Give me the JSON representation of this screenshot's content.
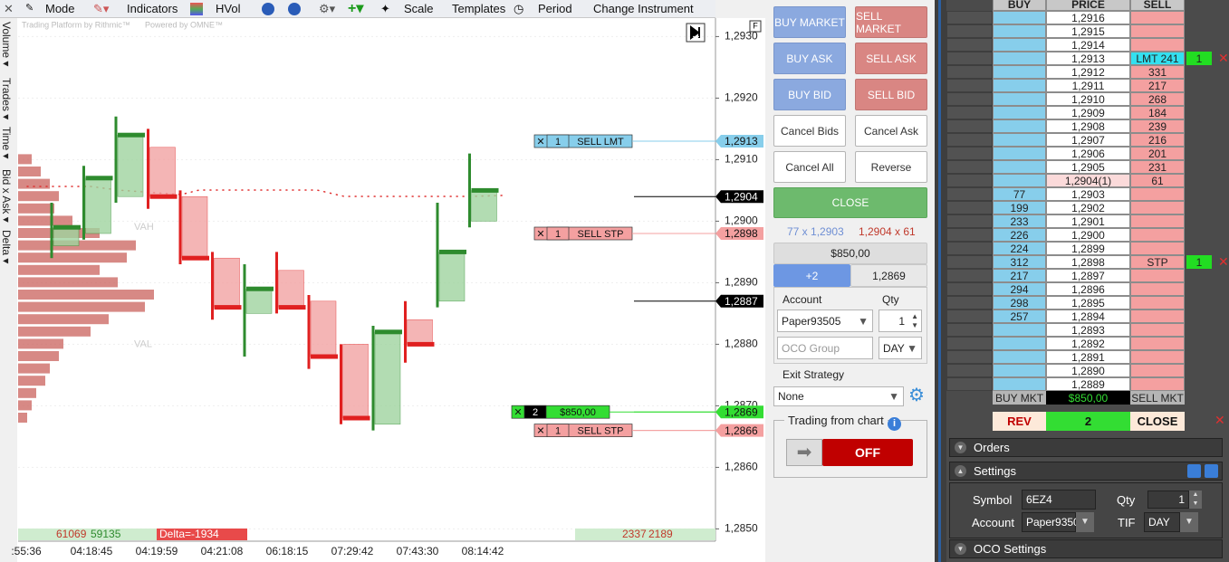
{
  "toolbar": {
    "mode": "Mode",
    "indicators": "Indicators",
    "hvol": "HVol",
    "scale": "Scale",
    "templates": "Templates",
    "period": "Period",
    "change_instrument": "Change Instrument"
  },
  "side_tabs": [
    "Volume ▾",
    "Trades ▾",
    "Time ▾",
    "Bid x Ask ▾",
    "Delta ▾"
  ],
  "chart": {
    "watermark": [
      "Trading Platform by Rithmic™",
      "Powered by OMNE™"
    ],
    "vah": "VAH",
    "val": "VAL",
    "ylim": [
      1.2848,
      1.2933
    ],
    "yticks": [
      {
        "value": 1.293,
        "label": "1,2930"
      },
      {
        "value": 1.292,
        "label": "1,2920"
      },
      {
        "value": 1.291,
        "label": "1,2910"
      },
      {
        "value": 1.29,
        "label": "1,2900"
      },
      {
        "value": 1.289,
        "label": "1,2890"
      },
      {
        "value": 1.288,
        "label": "1,2880"
      },
      {
        "value": 1.287,
        "label": "1,2870"
      },
      {
        "value": 1.286,
        "label": "1,2860"
      },
      {
        "value": 1.285,
        "label": "1,2850"
      }
    ],
    "grid": true,
    "price_tags": [
      {
        "value": 1.2913,
        "label": "1,2913",
        "color": "#87ceeb"
      },
      {
        "value": 1.2904,
        "label": "1,2904",
        "color": "#000000"
      },
      {
        "value": 1.2898,
        "label": "1,2898",
        "color": "#f4a0a0"
      },
      {
        "value": 1.2887,
        "label": "1,2887",
        "color": "#000000"
      },
      {
        "value": 1.2869,
        "label": "1,2869",
        "color": "#33dd33"
      },
      {
        "value": 1.2866,
        "label": "1,2866",
        "color": "#f4a0a0"
      }
    ],
    "order_tags": [
      {
        "qty": 1,
        "label": "SELL LMT",
        "price": 1.2913,
        "color": "#87ceeb"
      },
      {
        "qty": 1,
        "label": "SELL STP",
        "price": 1.2898,
        "color": "#f4a0a0"
      },
      {
        "qty": 2,
        "label": "$850,00",
        "price": 1.2869,
        "color": "#33dd33"
      },
      {
        "qty": 1,
        "label": "SELL STP",
        "price": 1.2866,
        "color": "#f4a0a0"
      }
    ],
    "x_labels": [
      ":55:36",
      "04:18:45",
      "04:19:59",
      "04:21:08",
      "06:18:15",
      "07:29:42",
      "07:43:30",
      "08:14:42"
    ],
    "candles": [
      {
        "open": 1.2896,
        "high": 1.2903,
        "low": 1.2894,
        "close": 1.2899
      },
      {
        "open": 1.2898,
        "high": 1.2909,
        "low": 1.2897,
        "close": 1.2907
      },
      {
        "open": 1.2904,
        "high": 1.2917,
        "low": 1.2903,
        "close": 1.2914
      },
      {
        "open": 1.2912,
        "high": 1.2915,
        "low": 1.2902,
        "close": 1.2904
      },
      {
        "open": 1.2904,
        "high": 1.2905,
        "low": 1.2893,
        "close": 1.2894
      },
      {
        "open": 1.2894,
        "high": 1.2895,
        "low": 1.2884,
        "close": 1.2886
      },
      {
        "open": 1.2885,
        "high": 1.2893,
        "low": 1.2878,
        "close": 1.2889
      },
      {
        "open": 1.2892,
        "high": 1.2895,
        "low": 1.2885,
        "close": 1.2886
      },
      {
        "open": 1.2887,
        "high": 1.2888,
        "low": 1.2876,
        "close": 1.2878
      },
      {
        "open": 1.288,
        "high": 1.288,
        "low": 1.2867,
        "close": 1.2868
      },
      {
        "open": 1.2867,
        "high": 1.2883,
        "low": 1.2866,
        "close": 1.2882
      },
      {
        "open": 1.2884,
        "high": 1.2887,
        "low": 1.2877,
        "close": 1.288
      },
      {
        "open": 1.2887,
        "high": 1.2903,
        "low": 1.2886,
        "close": 1.2895
      },
      {
        "open": 1.29,
        "high": 1.2911,
        "low": 1.2899,
        "close": 1.2905
      }
    ],
    "profile_prices": [
      1.291,
      1.2908,
      1.2906,
      1.2904,
      1.2902,
      1.29,
      1.2898,
      1.2896,
      1.2894,
      1.2892,
      1.289,
      1.2888,
      1.2886,
      1.2884,
      1.2882,
      1.288,
      1.2878,
      1.2876,
      1.2874,
      1.2872,
      1.287,
      1.2868
    ],
    "profile_volumes": [
      150,
      250,
      350,
      450,
      400,
      600,
      900,
      1300,
      1200,
      900,
      1100,
      1500,
      1400,
      1000,
      800,
      500,
      450,
      350,
      300,
      200,
      150,
      100
    ],
    "stats": {
      "bid_volume": 61069,
      "ask_volume": 59135,
      "delta": "Delta=-1934",
      "right_bid": 2337,
      "right_ask": 2189
    }
  },
  "order_panel": {
    "buy_market": "BUY MARKET",
    "sell_market": "SELL MARKET",
    "buy_ask": "BUY ASK",
    "sell_ask": "SELL ASK",
    "buy_bid": "BUY BID",
    "sell_bid": "SELL BID",
    "cancel_bids": "Cancel Bids",
    "cancel_ask": "Cancel Ask",
    "cancel_all": "Cancel All",
    "reverse": "Reverse",
    "close": "CLOSE",
    "bid_quote": "77 x 1,2903",
    "ask_quote": "1,2904 x 61",
    "pnl": "$850,00",
    "position": "+2",
    "avg_price": "1,2869",
    "account_label": "Account",
    "qty_label": "Qty",
    "account": "Paper93505",
    "qty": 1,
    "oco_group": "OCO Group",
    "tif": "DAY",
    "exit_strategy_label": "Exit Strategy",
    "exit_strategy": "None",
    "trading_from_chart": "Trading from chart",
    "toggle": "OFF"
  },
  "dom": {
    "headers": [
      "BUY",
      "PRICE",
      "SELL"
    ],
    "rows": [
      {
        "price": "1,2916"
      },
      {
        "price": "1,2915"
      },
      {
        "price": "1,2914"
      },
      {
        "price": "1,2913",
        "sell": "LMT 241",
        "order": 1
      },
      {
        "price": "1,2912",
        "sell": 331
      },
      {
        "price": "1,2911",
        "sell": 217
      },
      {
        "price": "1,2910",
        "sell": 268
      },
      {
        "price": "1,2909",
        "sell": 184
      },
      {
        "price": "1,2908",
        "sell": 239
      },
      {
        "price": "1,2907",
        "sell": 216
      },
      {
        "price": "1,2906",
        "sell": 201
      },
      {
        "price": "1,2905",
        "sell": 231
      },
      {
        "price": "1,2904(1)",
        "sell": 61
      },
      {
        "price": "1,2903",
        "buy": 77
      },
      {
        "price": "1,2902",
        "buy": 199
      },
      {
        "price": "1,2901",
        "buy": 233
      },
      {
        "price": "1,2900",
        "buy": 226
      },
      {
        "price": "1,2899",
        "buy": 224
      },
      {
        "price": "1,2898",
        "buy": 312,
        "sell": "STP",
        "order": 1
      },
      {
        "price": "1,2897",
        "buy": 217
      },
      {
        "price": "1,2896",
        "buy": 294
      },
      {
        "price": "1,2895",
        "buy": 298
      },
      {
        "price": "1,2894",
        "buy": 257
      },
      {
        "price": "1,2893"
      },
      {
        "price": "1,2892"
      },
      {
        "price": "1,2891"
      },
      {
        "price": "1,2890"
      },
      {
        "price": "1,2889"
      }
    ],
    "footer": [
      "BUY MKT",
      "$850,00",
      "SELL MKT"
    ],
    "actions": [
      "REV",
      "2",
      "CLOSE"
    ]
  },
  "bottom_panel": {
    "orders": "Orders",
    "settings": "Settings",
    "symbol_label": "Symbol",
    "symbol": "6EZ4",
    "qty_label": "Qty",
    "qty": 1,
    "account_label": "Account",
    "account": "Paper9350",
    "tif_label": "TIF",
    "tif": "DAY",
    "oco_settings": "OCO Settings"
  }
}
